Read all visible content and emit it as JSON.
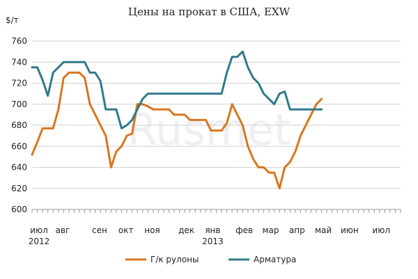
{
  "chart_data": {
    "type": "line",
    "title": "Цены на прокат в США, EXW",
    "y_unit": "$/т",
    "ylim": [
      600,
      760
    ],
    "yticks": [
      600,
      620,
      640,
      660,
      680,
      700,
      720,
      740,
      760
    ],
    "grid": true,
    "legend_position": "bottom",
    "watermark": "Rusmet",
    "x_tick_labels": [
      "июл",
      "авг",
      "сен",
      "окт",
      "ноя",
      "дек",
      "янв",
      "фев",
      "мар",
      "апр",
      "май",
      "июн",
      "июл"
    ],
    "x_tick_positions": [
      0,
      4.5,
      11.5,
      16.5,
      21.5,
      28,
      33,
      39,
      44,
      49,
      54,
      59,
      65
    ],
    "year_labels": [
      {
        "text": "2012",
        "pos": 0
      },
      {
        "text": "2013",
        "pos": 33
      }
    ],
    "x_max": 70,
    "series": [
      {
        "name": "Г/к рулоны",
        "color": "#d9761e",
        "x": [
          0,
          1,
          2,
          3,
          4,
          5,
          6,
          7,
          8,
          9,
          10,
          11,
          12,
          13,
          14,
          15,
          16,
          17,
          18,
          19,
          20,
          21,
          22,
          23,
          24,
          25,
          26,
          27,
          28,
          29,
          30,
          31,
          32,
          33,
          34,
          35,
          36,
          37,
          38,
          39,
          40,
          41,
          42,
          43,
          44,
          45,
          46,
          47,
          48,
          49,
          50,
          51,
          52,
          53,
          54,
          55,
          56,
          57,
          58,
          59,
          60,
          61,
          62,
          63,
          64,
          65,
          66
        ],
        "values": [
          652,
          664,
          677,
          677,
          677,
          695,
          725,
          730,
          730,
          730,
          725,
          700,
          690,
          680,
          670,
          640,
          655,
          660,
          670,
          672,
          700,
          700,
          698,
          695,
          695,
          695,
          695,
          690,
          690,
          690,
          685,
          685,
          685,
          685,
          675,
          675,
          675,
          682,
          700,
          690,
          680,
          660,
          648,
          640,
          640,
          635,
          635,
          620,
          640,
          645,
          655,
          670,
          680,
          690,
          700,
          705,
          null,
          null,
          null,
          null,
          null,
          null,
          null,
          null,
          null,
          null,
          null
        ]
      },
      {
        "name": "Арматура",
        "color": "#2e7a8a",
        "x": [
          0,
          1,
          2,
          3,
          4,
          5,
          6,
          7,
          8,
          9,
          10,
          11,
          12,
          13,
          14,
          15,
          16,
          17,
          18,
          19,
          20,
          21,
          22,
          23,
          24,
          25,
          26,
          27,
          28,
          29,
          30,
          31,
          32,
          33,
          34,
          35,
          36,
          37,
          38,
          39,
          40,
          41,
          42,
          43,
          44,
          45,
          46,
          47,
          48,
          49,
          50,
          51,
          52,
          53,
          54,
          55,
          56,
          57,
          58,
          59,
          60,
          61,
          62,
          63,
          64,
          65,
          66
        ],
        "values": [
          735,
          735,
          723,
          708,
          730,
          735,
          740,
          740,
          740,
          740,
          740,
          730,
          730,
          722,
          695,
          695,
          695,
          677,
          680,
          685,
          695,
          705,
          710,
          710,
          710,
          710,
          710,
          710,
          710,
          710,
          710,
          710,
          710,
          710,
          710,
          710,
          710,
          730,
          745,
          745,
          750,
          735,
          725,
          720,
          710,
          705,
          700,
          710,
          712,
          695,
          695,
          695,
          695,
          695,
          695,
          695,
          null,
          null,
          null,
          null,
          null,
          null,
          null,
          null,
          null,
          null,
          null
        ]
      }
    ]
  }
}
